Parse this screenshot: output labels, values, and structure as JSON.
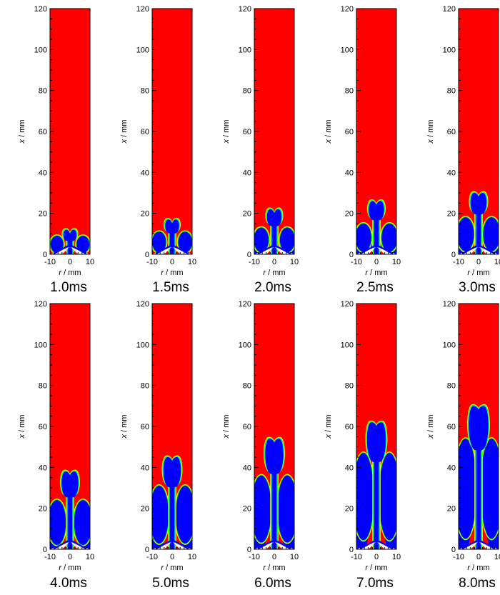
{
  "colors": {
    "background_field": "#ff0000",
    "flame_core": "#0000ff",
    "flame_edge_inner": "#00ffff",
    "flame_edge_outer": "#ffff00",
    "flame_edge_mid": "#00ff00",
    "injector": "#ffffff",
    "axis": "#000000"
  },
  "chart_data": {
    "type": "heatmap",
    "layout": "small-multiples 2 rows x 5 columns",
    "xlabel_italic": "r",
    "xlabel_unit": " / mm",
    "ylabel_italic": "x",
    "ylabel_unit": " / mm",
    "xlim": [
      -10,
      10
    ],
    "ylim": [
      0,
      120
    ],
    "xticks": [
      -10,
      0,
      10
    ],
    "xtick_labels": [
      "-10",
      "0",
      "10"
    ],
    "yticks": [
      0,
      20,
      40,
      60,
      80,
      100,
      120
    ],
    "ytick_labels": [
      "0",
      "20",
      "40",
      "60",
      "80",
      "100",
      "120"
    ],
    "panels": [
      {
        "time_label": "1.0ms",
        "plume_height": 12,
        "lobe_height": 7,
        "filled_height": 0
      },
      {
        "time_label": "1.5ms",
        "plume_height": 17,
        "lobe_height": 9,
        "filled_height": 0
      },
      {
        "time_label": "2.0ms",
        "plume_height": 22,
        "lobe_height": 11,
        "filled_height": 3
      },
      {
        "time_label": "2.5ms",
        "plume_height": 26,
        "lobe_height": 13,
        "filled_height": 6
      },
      {
        "time_label": "3.0ms",
        "plume_height": 30,
        "lobe_height": 16,
        "filled_height": 10
      },
      {
        "time_label": "4.0ms",
        "plume_height": 38,
        "lobe_height": 22,
        "filled_height": 18
      },
      {
        "time_label": "5.0ms",
        "plume_height": 45,
        "lobe_height": 29,
        "filled_height": 24
      },
      {
        "time_label": "6.0ms",
        "plume_height": 54,
        "lobe_height": 34,
        "filled_height": 30
      },
      {
        "time_label": "7.0ms",
        "plume_height": 62,
        "lobe_height": 45,
        "filled_height": 40
      },
      {
        "time_label": "8.0ms",
        "plume_height": 70,
        "lobe_height": 52,
        "filled_height": 48
      }
    ]
  }
}
